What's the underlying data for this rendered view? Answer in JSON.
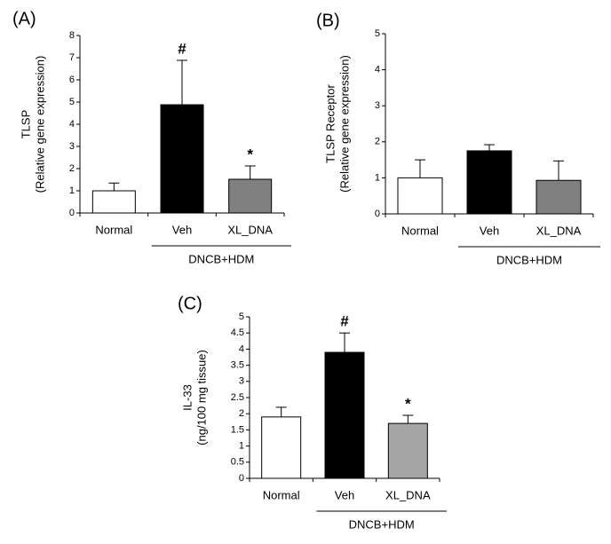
{
  "chart_data": [
    {
      "type": "bar",
      "panel": "(A)",
      "ylabel": [
        "TLSP",
        "(Relative gene expression)"
      ],
      "categories": [
        "Normal",
        "Veh",
        "XL_DNA"
      ],
      "values": [
        1.0,
        4.88,
        1.52
      ],
      "errors": [
        0.35,
        2.0,
        0.6
      ],
      "colors": [
        "#ffffff",
        "#000000",
        "#808080"
      ],
      "annotations": [
        null,
        "#",
        "*"
      ],
      "group_label": "DNCB+HDM",
      "ylim": [
        0,
        8
      ],
      "yticks": [
        0,
        1,
        2,
        3,
        4,
        5,
        6,
        7,
        8
      ]
    },
    {
      "type": "bar",
      "panel": "(B)",
      "ylabel": [
        "TLSP Receptor",
        "(Relative gene expression)"
      ],
      "categories": [
        "Normal",
        "Veh",
        "XL_DNA"
      ],
      "values": [
        1.0,
        1.75,
        0.93
      ],
      "errors": [
        0.5,
        0.17,
        0.54
      ],
      "colors": [
        "#ffffff",
        "#000000",
        "#808080"
      ],
      "group_label": "DNCB+HDM",
      "ylim": [
        0,
        5
      ],
      "yticks": [
        0,
        1,
        2,
        3,
        4,
        5
      ]
    },
    {
      "type": "bar",
      "panel": "(C)",
      "ylabel": [
        "IL-33",
        "(ng/100 mg tissue)"
      ],
      "categories": [
        "Normal",
        "Veh",
        "XL_DNA"
      ],
      "values": [
        1.9,
        3.9,
        1.7
      ],
      "errors": [
        0.3,
        0.6,
        0.25
      ],
      "colors": [
        "#ffffff",
        "#000000",
        "#a6a6a6"
      ],
      "annotations": [
        null,
        "#",
        "*"
      ],
      "group_label": "DNCB+HDM",
      "ylim": [
        0,
        5
      ],
      "yticks": [
        0,
        0.5,
        1,
        1.5,
        2,
        2.5,
        3,
        3.5,
        4,
        4.5,
        5
      ]
    }
  ]
}
